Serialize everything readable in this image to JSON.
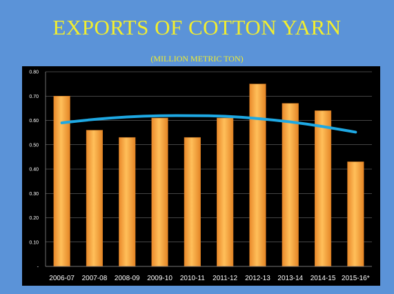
{
  "slide": {
    "title": "EXPORTS OF COTTON YARN",
    "subtitle": "(MILLION METRIC TON)"
  },
  "colors": {
    "background": "#5b93d8",
    "title": "#f2ee2e",
    "chart_background": "#000000",
    "bar": "#f7a33a",
    "trendline": "#1ea8e3",
    "text": "#ffffff",
    "grid": "#8a8a8a"
  },
  "chart_data": {
    "type": "bar",
    "title": "",
    "xlabel": "",
    "ylabel": "",
    "categories": [
      "2006-07",
      "2007-08",
      "2008-09",
      "2009-10",
      "2010-11",
      "2011-12",
      "2012-13",
      "2013-14",
      "2014-15",
      "2015-16*"
    ],
    "values": [
      0.7,
      0.56,
      0.53,
      0.61,
      0.53,
      0.61,
      0.75,
      0.67,
      0.64,
      0.43
    ],
    "trendline": {
      "type": "polynomial",
      "values": [
        0.59,
        0.605,
        0.615,
        0.62,
        0.62,
        0.618,
        0.608,
        0.595,
        0.575,
        0.552
      ]
    },
    "ylim": [
      0,
      0.8
    ],
    "yticks": [
      0,
      0.1,
      0.2,
      0.3,
      0.4,
      0.5,
      0.6,
      0.7,
      0.8
    ],
    "ytick_labels": [
      "-",
      "0.10",
      "0.20",
      "0.30",
      "0.40",
      "0.50",
      "0.60",
      "0.70",
      "0.80"
    ],
    "grid": true,
    "legend": "none"
  }
}
